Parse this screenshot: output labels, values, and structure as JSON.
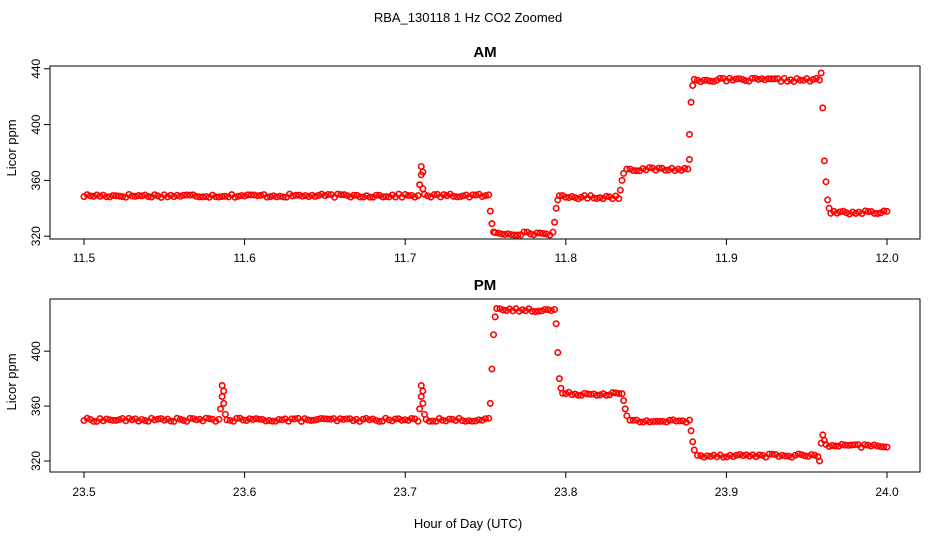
{
  "figure": {
    "title": "RBA_130118  1 Hz CO2 Zoomed",
    "xlabel": "Hour of Day (UTC)",
    "point_color": "#ff0000"
  },
  "chart_data": [
    {
      "type": "scatter",
      "title": "AM",
      "ylabel": "Licor ppm",
      "xlim": [
        11.5,
        12.0
      ],
      "ylim": [
        318,
        442
      ],
      "xticks": [
        "11.5",
        "11.6",
        "11.7",
        "11.8",
        "11.9",
        "12.0"
      ],
      "yticks": [
        "320",
        "360",
        "400",
        "440"
      ],
      "series": [
        {
          "segments": [
            {
              "x0": 11.5,
              "x1": 11.708,
              "y": 349
            },
            {
              "x0": 11.712,
              "x1": 11.752,
              "y": 349
            },
            {
              "x0": 11.756,
              "x1": 11.792,
              "y": 322
            },
            {
              "x0": 11.796,
              "x1": 11.833,
              "y": 348
            },
            {
              "x0": 11.838,
              "x1": 11.876,
              "y": 368
            },
            {
              "x0": 11.88,
              "x1": 11.958,
              "y": 432
            },
            {
              "x0": 11.965,
              "x1": 12.0,
              "y": 337
            }
          ],
          "points": [
            [
              11.709,
              357
            ],
            [
              11.71,
              364
            ],
            [
              11.71,
              370
            ],
            [
              11.711,
              366
            ],
            [
              11.711,
              354
            ],
            [
              11.753,
              338
            ],
            [
              11.754,
              329
            ],
            [
              11.755,
              323
            ],
            [
              11.793,
              330
            ],
            [
              11.794,
              340
            ],
            [
              11.795,
              346
            ],
            [
              11.834,
              353
            ],
            [
              11.835,
              360
            ],
            [
              11.836,
              365
            ],
            [
              11.877,
              375
            ],
            [
              11.877,
              393
            ],
            [
              11.878,
              416
            ],
            [
              11.879,
              428
            ],
            [
              11.959,
              437
            ],
            [
              11.96,
              412
            ],
            [
              11.961,
              374
            ],
            [
              11.962,
              359
            ],
            [
              11.963,
              346
            ],
            [
              11.964,
              340
            ]
          ]
        }
      ]
    },
    {
      "type": "scatter",
      "title": "PM",
      "ylabel": "Licor ppm",
      "xlim": [
        23.5,
        24.0
      ],
      "ylim": [
        312,
        438
      ],
      "xticks": [
        "23.5",
        "23.6",
        "23.7",
        "23.8",
        "23.9",
        "24.0"
      ],
      "yticks": [
        "320",
        "360",
        "400"
      ],
      "series": [
        {
          "segments": [
            {
              "x0": 23.5,
              "x1": 23.584,
              "y": 350
            },
            {
              "x0": 23.589,
              "x1": 23.708,
              "y": 350
            },
            {
              "x0": 23.713,
              "x1": 23.752,
              "y": 350
            },
            {
              "x0": 23.757,
              "x1": 23.793,
              "y": 430
            },
            {
              "x0": 23.798,
              "x1": 23.835,
              "y": 369
            },
            {
              "x0": 23.84,
              "x1": 23.877,
              "y": 349
            },
            {
              "x0": 23.882,
              "x1": 23.957,
              "y": 324
            },
            {
              "x0": 23.962,
              "x1": 24.0,
              "y": 331
            }
          ],
          "points": [
            [
              23.585,
              358
            ],
            [
              23.586,
              367
            ],
            [
              23.586,
              375
            ],
            [
              23.587,
              371
            ],
            [
              23.587,
              362
            ],
            [
              23.588,
              354
            ],
            [
              23.709,
              358
            ],
            [
              23.71,
              367
            ],
            [
              23.71,
              375
            ],
            [
              23.711,
              371
            ],
            [
              23.711,
              362
            ],
            [
              23.712,
              354
            ],
            [
              23.753,
              362
            ],
            [
              23.754,
              387
            ],
            [
              23.755,
              412
            ],
            [
              23.756,
              425
            ],
            [
              23.794,
              420
            ],
            [
              23.795,
              399
            ],
            [
              23.796,
              380
            ],
            [
              23.797,
              373
            ],
            [
              23.836,
              364
            ],
            [
              23.837,
              358
            ],
            [
              23.838,
              353
            ],
            [
              23.878,
              342
            ],
            [
              23.879,
              334
            ],
            [
              23.88,
              328
            ],
            [
              23.958,
              320
            ],
            [
              23.959,
              333
            ],
            [
              23.96,
              339
            ],
            [
              23.961,
              335
            ]
          ]
        }
      ]
    }
  ]
}
